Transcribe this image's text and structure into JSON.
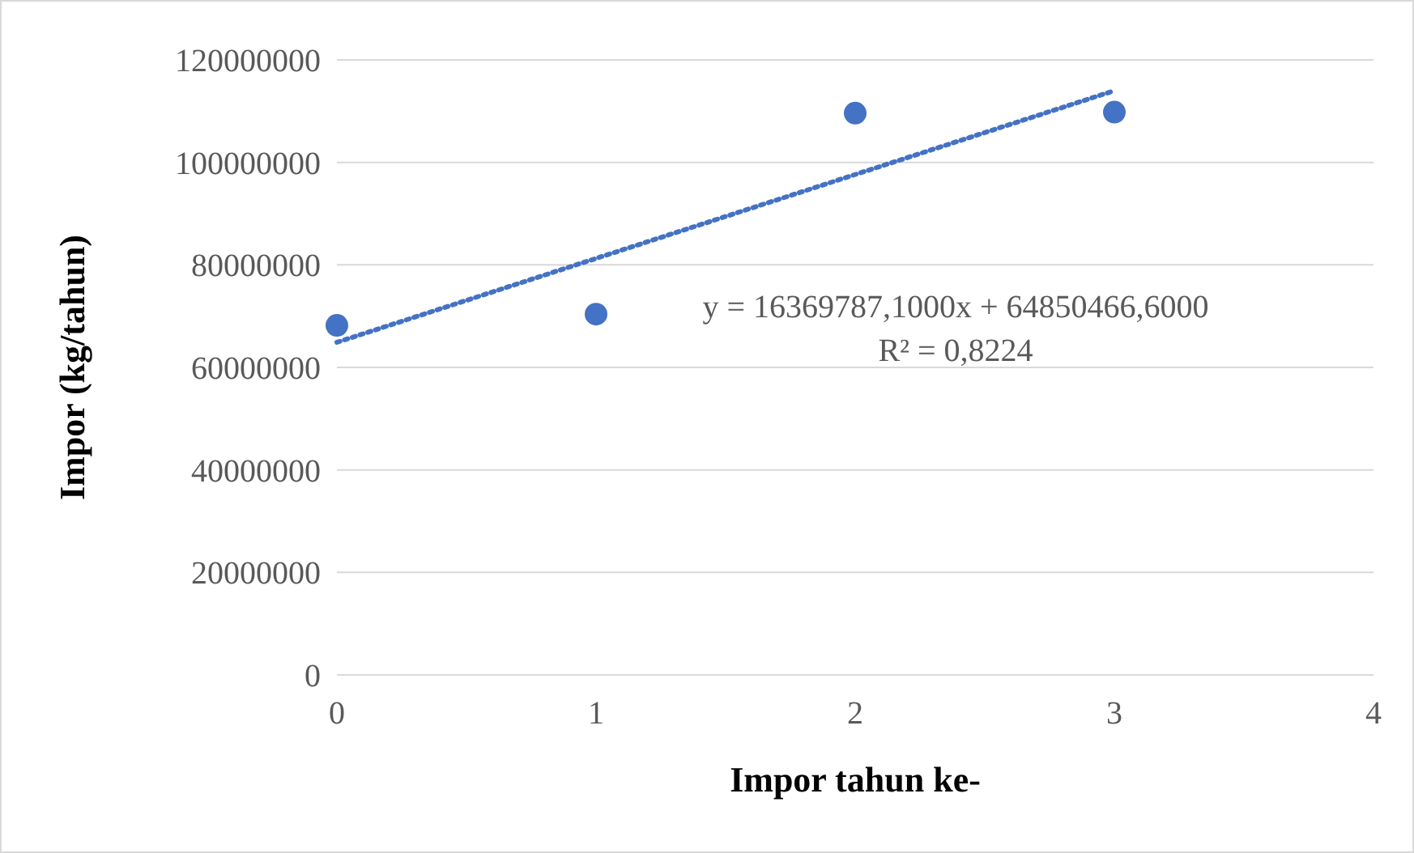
{
  "chart_data": {
    "type": "scatter",
    "xlabel": "Impor tahun ke-",
    "ylabel": "Impor (kg/tahun)",
    "xlim": [
      0,
      4
    ],
    "xticks": [
      0,
      1,
      2,
      3,
      4
    ],
    "ylim": [
      0,
      120000000
    ],
    "yticks": [
      0,
      20000000,
      40000000,
      60000000,
      80000000,
      100000000,
      120000000
    ],
    "grid": "y",
    "series": [
      {
        "color": "#4472c4",
        "marker": "circle",
        "x": [
          0,
          1,
          2,
          3
        ],
        "values": [
          68200000,
          70400000,
          109600000,
          109800000
        ]
      },
      {
        "type": "line",
        "color": "#4472c4",
        "line_style": "dotted",
        "marker": "none",
        "x": [
          0,
          3
        ],
        "values": [
          64900000,
          114000000
        ]
      }
    ],
    "annotations": [
      "y = 16369787,1000x + 64850466,6000",
      "R² = 0,8224"
    ]
  }
}
